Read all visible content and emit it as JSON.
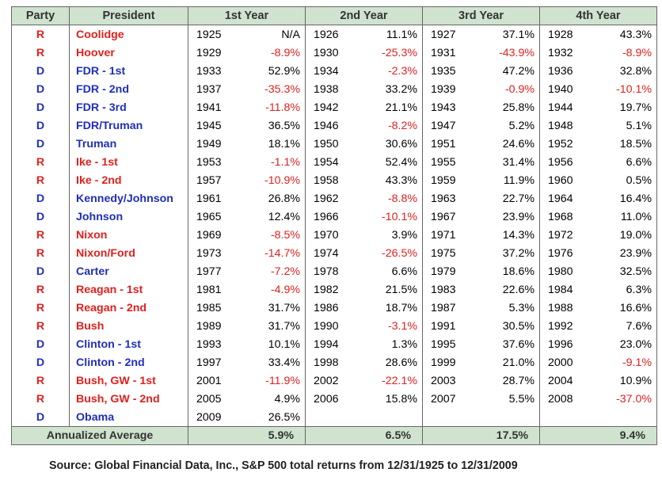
{
  "headers": [
    "Party",
    "President",
    "1st Year",
    "2nd Year",
    "3rd Year",
    "4th Year"
  ],
  "rows": [
    {
      "party": "R",
      "president": "Coolidge",
      "years": [
        [
          "1925",
          "N/A"
        ],
        [
          "1926",
          "11.1%"
        ],
        [
          "1927",
          "37.1%"
        ],
        [
          "1928",
          "43.3%"
        ]
      ]
    },
    {
      "party": "R",
      "president": "Hoover",
      "years": [
        [
          "1929",
          "-8.9%"
        ],
        [
          "1930",
          "-25.3%"
        ],
        [
          "1931",
          "-43.9%"
        ],
        [
          "1932",
          "-8.9%"
        ]
      ]
    },
    {
      "party": "D",
      "president": "FDR - 1st",
      "years": [
        [
          "1933",
          "52.9%"
        ],
        [
          "1934",
          "-2.3%"
        ],
        [
          "1935",
          "47.2%"
        ],
        [
          "1936",
          "32.8%"
        ]
      ]
    },
    {
      "party": "D",
      "president": "FDR - 2nd",
      "years": [
        [
          "1937",
          "-35.3%"
        ],
        [
          "1938",
          "33.2%"
        ],
        [
          "1939",
          "-0.9%"
        ],
        [
          "1940",
          "-10.1%"
        ]
      ]
    },
    {
      "party": "D",
      "president": "FDR - 3rd",
      "years": [
        [
          "1941",
          "-11.8%"
        ],
        [
          "1942",
          "21.1%"
        ],
        [
          "1943",
          "25.8%"
        ],
        [
          "1944",
          "19.7%"
        ]
      ]
    },
    {
      "party": "D",
      "president": "FDR/Truman",
      "years": [
        [
          "1945",
          "36.5%"
        ],
        [
          "1946",
          "-8.2%"
        ],
        [
          "1947",
          "5.2%"
        ],
        [
          "1948",
          "5.1%"
        ]
      ]
    },
    {
      "party": "D",
      "president": "Truman",
      "years": [
        [
          "1949",
          "18.1%"
        ],
        [
          "1950",
          "30.6%"
        ],
        [
          "1951",
          "24.6%"
        ],
        [
          "1952",
          "18.5%"
        ]
      ]
    },
    {
      "party": "R",
      "president": "Ike - 1st",
      "years": [
        [
          "1953",
          "-1.1%"
        ],
        [
          "1954",
          "52.4%"
        ],
        [
          "1955",
          "31.4%"
        ],
        [
          "1956",
          "6.6%"
        ]
      ]
    },
    {
      "party": "R",
      "president": "Ike - 2nd",
      "years": [
        [
          "1957",
          "-10.9%"
        ],
        [
          "1958",
          "43.3%"
        ],
        [
          "1959",
          "11.9%"
        ],
        [
          "1960",
          "0.5%"
        ]
      ]
    },
    {
      "party": "D",
      "president": "Kennedy/Johnson",
      "years": [
        [
          "1961",
          "26.8%"
        ],
        [
          "1962",
          "-8.8%"
        ],
        [
          "1963",
          "22.7%"
        ],
        [
          "1964",
          "16.4%"
        ]
      ]
    },
    {
      "party": "D",
      "president": "Johnson",
      "years": [
        [
          "1965",
          "12.4%"
        ],
        [
          "1966",
          "-10.1%"
        ],
        [
          "1967",
          "23.9%"
        ],
        [
          "1968",
          "11.0%"
        ]
      ]
    },
    {
      "party": "R",
      "president": "Nixon",
      "years": [
        [
          "1969",
          "-8.5%"
        ],
        [
          "1970",
          "3.9%"
        ],
        [
          "1971",
          "14.3%"
        ],
        [
          "1972",
          "19.0%"
        ]
      ]
    },
    {
      "party": "R",
      "president": "Nixon/Ford",
      "years": [
        [
          "1973",
          "-14.7%"
        ],
        [
          "1974",
          "-26.5%"
        ],
        [
          "1975",
          "37.2%"
        ],
        [
          "1976",
          "23.9%"
        ]
      ]
    },
    {
      "party": "D",
      "president": "Carter",
      "years": [
        [
          "1977",
          "-7.2%"
        ],
        [
          "1978",
          "6.6%"
        ],
        [
          "1979",
          "18.6%"
        ],
        [
          "1980",
          "32.5%"
        ]
      ]
    },
    {
      "party": "R",
      "president": "Reagan - 1st",
      "years": [
        [
          "1981",
          "-4.9%"
        ],
        [
          "1982",
          "21.5%"
        ],
        [
          "1983",
          "22.6%"
        ],
        [
          "1984",
          "6.3%"
        ]
      ]
    },
    {
      "party": "R",
      "president": "Reagan - 2nd",
      "years": [
        [
          "1985",
          "31.7%"
        ],
        [
          "1986",
          "18.7%"
        ],
        [
          "1987",
          "5.3%"
        ],
        [
          "1988",
          "16.6%"
        ]
      ]
    },
    {
      "party": "R",
      "president": "Bush",
      "years": [
        [
          "1989",
          "31.7%"
        ],
        [
          "1990",
          "-3.1%"
        ],
        [
          "1991",
          "30.5%"
        ],
        [
          "1992",
          "7.6%"
        ]
      ]
    },
    {
      "party": "D",
      "president": "Clinton - 1st",
      "years": [
        [
          "1993",
          "10.1%"
        ],
        [
          "1994",
          "1.3%"
        ],
        [
          "1995",
          "37.6%"
        ],
        [
          "1996",
          "23.0%"
        ]
      ]
    },
    {
      "party": "D",
      "president": "Clinton - 2nd",
      "years": [
        [
          "1997",
          "33.4%"
        ],
        [
          "1998",
          "28.6%"
        ],
        [
          "1999",
          "21.0%"
        ],
        [
          "2000",
          "-9.1%"
        ]
      ]
    },
    {
      "party": "R",
      "president": "Bush, GW - 1st",
      "years": [
        [
          "2001",
          "-11.9%"
        ],
        [
          "2002",
          "-22.1%"
        ],
        [
          "2003",
          "28.7%"
        ],
        [
          "2004",
          "10.9%"
        ]
      ]
    },
    {
      "party": "R",
      "president": "Bush, GW - 2nd",
      "years": [
        [
          "2005",
          "4.9%"
        ],
        [
          "2006",
          "15.8%"
        ],
        [
          "2007",
          "5.5%"
        ],
        [
          "2008",
          "-37.0%"
        ]
      ]
    },
    {
      "party": "D",
      "president": "Obama",
      "years": [
        [
          "2009",
          "26.5%"
        ],
        [
          "",
          ""
        ],
        [
          "",
          ""
        ],
        [
          "",
          ""
        ]
      ]
    }
  ],
  "footer": {
    "label": "Annualized Average",
    "averages": [
      "5.9%",
      "6.5%",
      "17.5%",
      "9.4%"
    ]
  },
  "source": "Source: Global Financial Data, Inc., S&P 500 total returns from 12/31/1925 to 12/31/2009",
  "colors": {
    "republican": "#e0201e",
    "democrat": "#1f2fb8",
    "negative": "#e0201e",
    "header_bg": "#cfe3cf"
  }
}
